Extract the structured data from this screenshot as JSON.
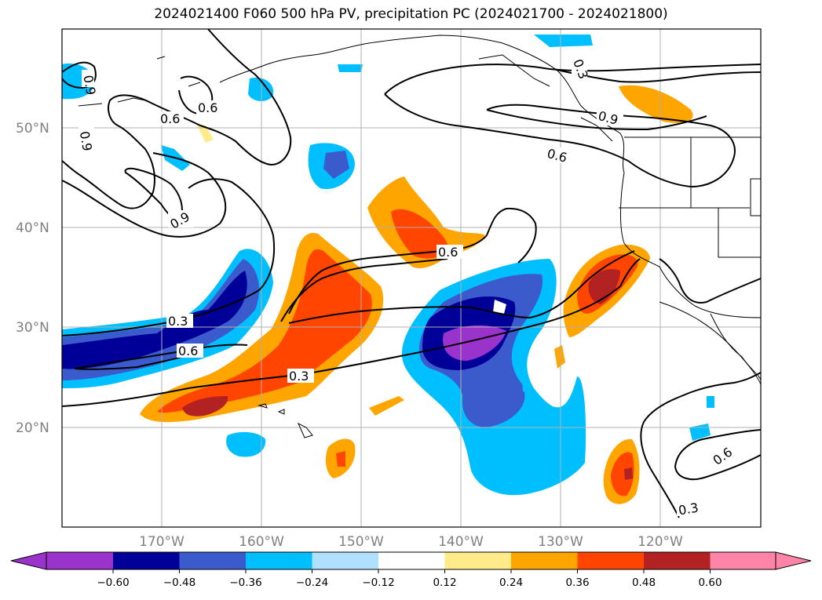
{
  "title": "2024021400 F060 500 hPa PV, precipitation PC (2024021700 - 2024021800)",
  "lat_labels": [
    "50°N",
    "40°N",
    "30°N",
    "20°N"
  ],
  "lon_labels": [
    "170°W",
    "160°W",
    "150°W",
    "140°W",
    "130°W",
    "120°W"
  ],
  "contour_labels": [
    "0.9",
    "0.6",
    "0.9",
    "0.6",
    "0.9",
    "0.3",
    "0.6",
    "0.3",
    "0.6",
    "0.3",
    "0.9",
    "0.6",
    "0.6",
    "0.3"
  ],
  "colorbar": {
    "colors": [
      "#9933cc",
      "#000099",
      "#3b5bcc",
      "#00bfff",
      "#b0e0ff",
      "#ffffff",
      "#ffeb8a",
      "#ffa500",
      "#ff4500",
      "#b22222",
      "#ff85a8"
    ],
    "ticks": [
      "−0.60",
      "−0.48",
      "−0.36",
      "−0.24",
      "−0.12",
      "0.12",
      "0.24",
      "0.36",
      "0.48",
      "0.60"
    ]
  }
}
